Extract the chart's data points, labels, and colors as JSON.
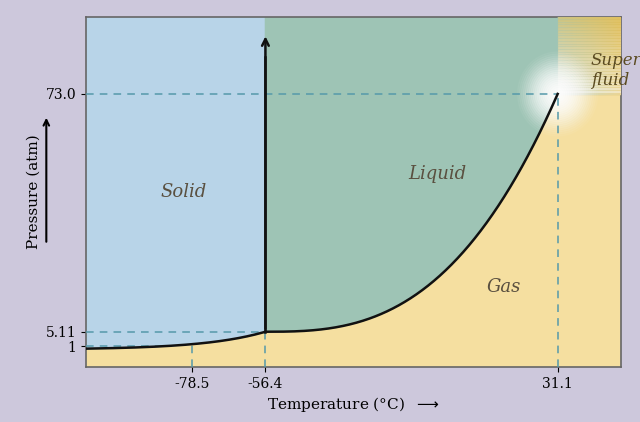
{
  "title": "",
  "xlabel": "Temperature (°C)",
  "ylabel": "Pressure (atm)",
  "xlim": [
    -110,
    50
  ],
  "ylim": [
    -5,
    95
  ],
  "x_ticks": [
    -78.5,
    -56.4,
    31.1
  ],
  "y_ticks": [
    1,
    5.11,
    73.0
  ],
  "y_tick_labels": [
    "1",
    "5.11",
    "73.0"
  ],
  "triple_point": [
    -56.4,
    5.11
  ],
  "critical_point": [
    31.1,
    73.0
  ],
  "solid_color": "#b8d4e8",
  "liquid_color": "#9ec4b5",
  "gas_color": "#f5dfa0",
  "supercritical_color": "#ddb84a",
  "supercritical_text_color": "#5a4a20",
  "outer_bg": "#cdc8dc",
  "dashed_color": "#5599aa",
  "line_color": "#111111",
  "label_color": "#5a5040",
  "font_size": 11,
  "sub_start_T": -110,
  "sub_start_P": 0.28,
  "vap_exponent": 2.8
}
